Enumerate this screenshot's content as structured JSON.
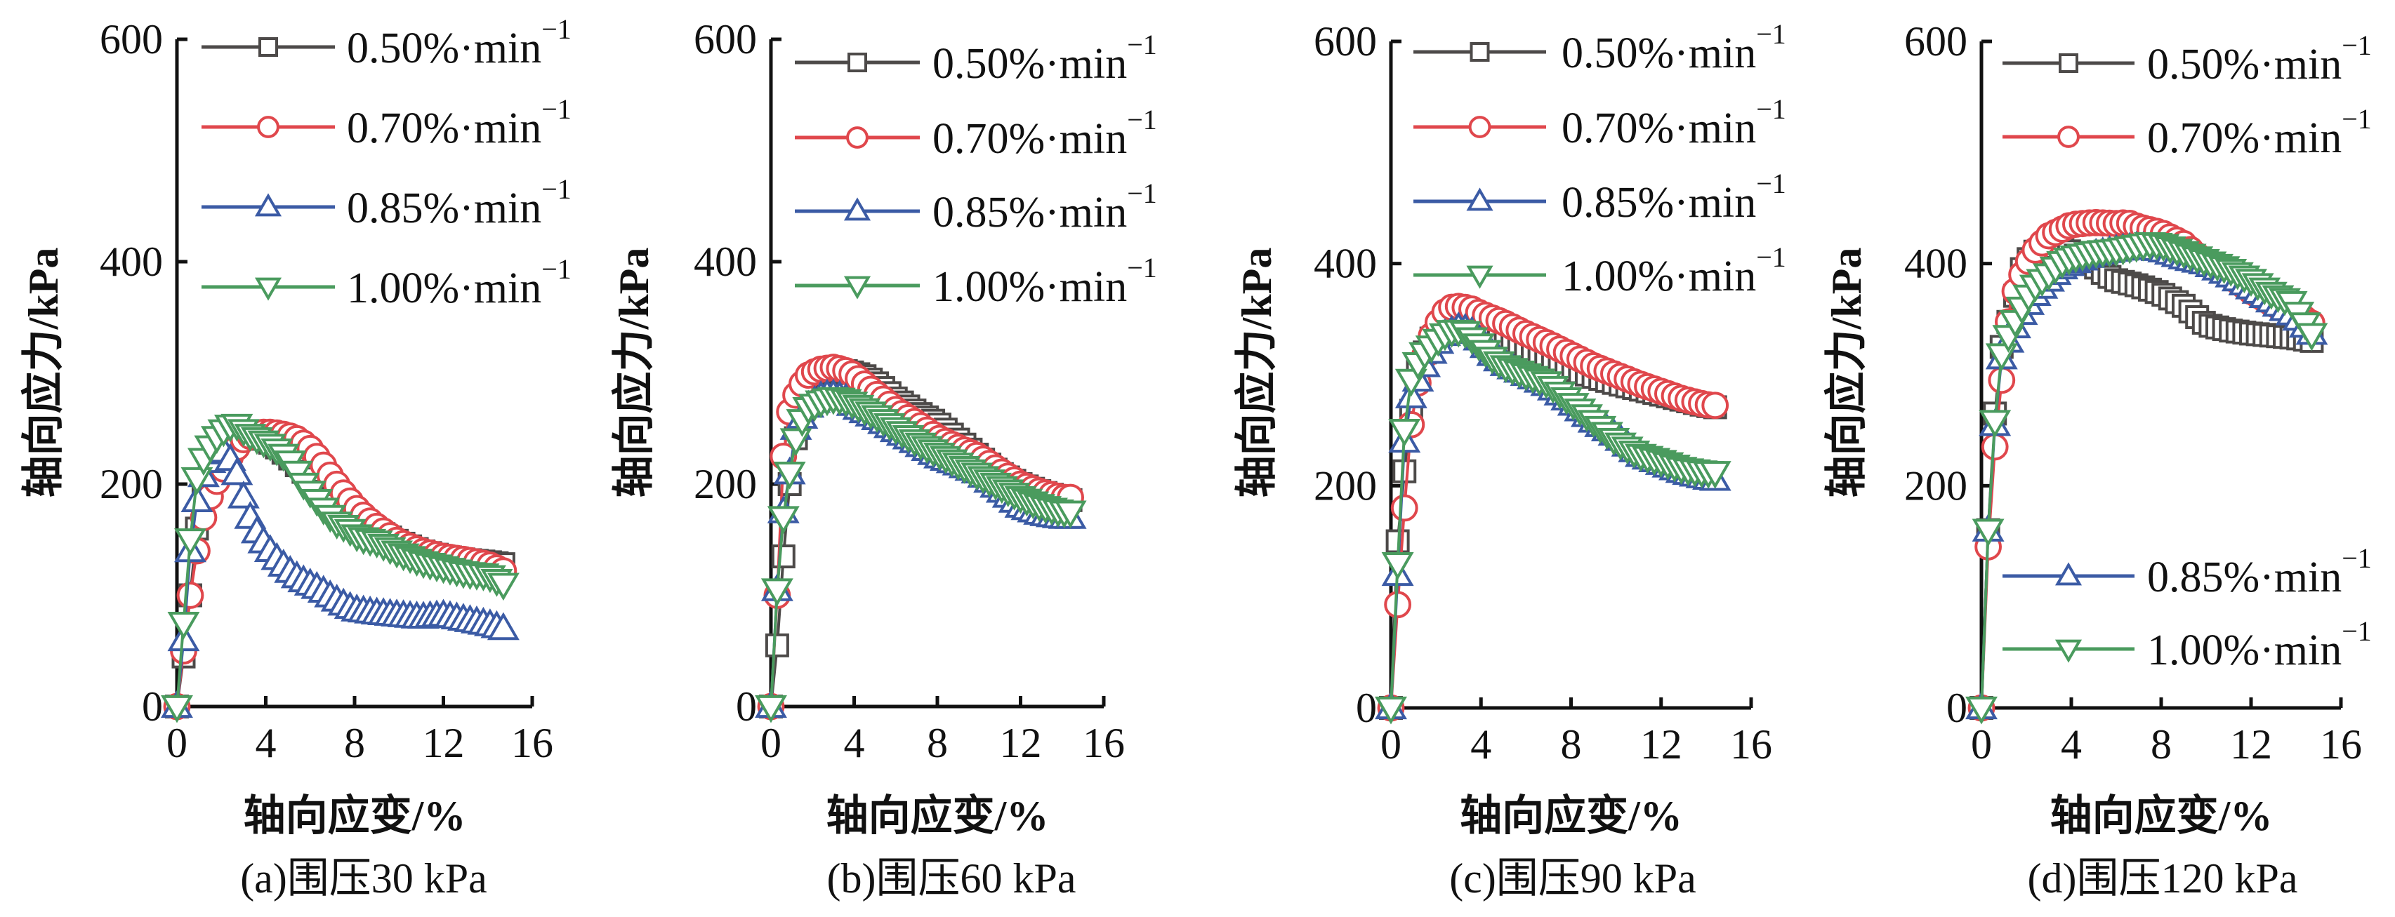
{
  "figure": {
    "series_styles": [
      {
        "name": "0.50%·min⁻¹",
        "rate_label": "0.50%·min",
        "sup": "−1",
        "color": "#4d4a49",
        "marker": "square"
      },
      {
        "name": "0.70%·min⁻¹",
        "rate_label": "0.70%·min",
        "sup": "−1",
        "color": "#e0474c",
        "marker": "circle"
      },
      {
        "name": "0.85%·min⁻¹",
        "rate_label": "0.85%·min",
        "sup": "−1",
        "color": "#3b5ba5",
        "marker": "triangle-up"
      },
      {
        "name": "1.00%·min⁻¹",
        "rate_label": "1.00%·min",
        "sup": "−1",
        "color": "#4a9b5e",
        "marker": "triangle-down"
      }
    ]
  },
  "chart_data": [
    {
      "type": "line",
      "title": "(a)围压30 kPa",
      "xlabel": "轴向应变/%",
      "ylabel": "轴向应力/kPa",
      "xlim": [
        0,
        16
      ],
      "ylim": [
        0,
        600
      ],
      "xticks": [
        0,
        4,
        8,
        12,
        16
      ],
      "yticks": [
        0,
        200,
        400,
        600
      ],
      "grid": false,
      "legend_position": "top-right",
      "series": [
        {
          "name": "0.50%·min⁻¹",
          "x": [
            0,
            0.3,
            0.6,
            0.9,
            1.2,
            1.6,
            2,
            2.5,
            3,
            3.5,
            4,
            4.5,
            5,
            5.5,
            6,
            6.5,
            7,
            7.5,
            8,
            9,
            10,
            11,
            12,
            13,
            14,
            14.7
          ],
          "y": [
            0,
            45,
            100,
            160,
            195,
            215,
            228,
            238,
            243,
            244,
            240,
            233,
            225,
            215,
            205,
            195,
            185,
            175,
            168,
            158,
            148,
            140,
            135,
            132,
            130,
            128
          ]
        },
        {
          "name": "0.70%·min⁻¹",
          "x": [
            0,
            0.3,
            0.6,
            0.9,
            1.2,
            1.6,
            2,
            2.5,
            3,
            3.5,
            4,
            4.5,
            5,
            5.5,
            6,
            6.5,
            7,
            7.5,
            8,
            8.5,
            9,
            9.5,
            10,
            11,
            12,
            13,
            14,
            14.7
          ],
          "y": [
            0,
            50,
            100,
            140,
            170,
            195,
            210,
            228,
            240,
            245,
            247,
            246,
            244,
            240,
            232,
            220,
            205,
            192,
            180,
            170,
            162,
            155,
            148,
            140,
            135,
            132,
            128,
            122
          ]
        },
        {
          "name": "0.85%·min⁻¹",
          "x": [
            0,
            0.3,
            0.6,
            0.9,
            1.3,
            1.8,
            2.2,
            2.5,
            2.8,
            3.1,
            3.5,
            4,
            4.5,
            5,
            5.5,
            6,
            6.5,
            7,
            7.5,
            8,
            9,
            10,
            11,
            12,
            13,
            14,
            14.7
          ],
          "y": [
            0,
            60,
            140,
            185,
            215,
            228,
            230,
            218,
            205,
            180,
            160,
            145,
            133,
            123,
            115,
            110,
            105,
            98,
            92,
            87,
            84,
            82,
            80,
            82,
            78,
            74,
            70
          ]
        },
        {
          "name": "1.00%·min⁻¹",
          "x": [
            0,
            0.3,
            0.6,
            0.9,
            1.3,
            1.8,
            2.3,
            2.7,
            3.2,
            3.7,
            4.2,
            4.7,
            5.2,
            5.7,
            6.2,
            6.7,
            7.2,
            7.7,
            8.2,
            9,
            10,
            11,
            12,
            13,
            14,
            14.7
          ],
          "y": [
            0,
            75,
            150,
            205,
            228,
            242,
            252,
            253,
            245,
            240,
            235,
            228,
            218,
            200,
            188,
            175,
            165,
            160,
            152,
            148,
            138,
            130,
            125,
            120,
            118,
            110
          ]
        }
      ]
    },
    {
      "type": "line",
      "title": "(b)围压60 kPa",
      "xlabel": "轴向应变/%",
      "ylabel": "轴向应力/kPa",
      "xlim": [
        0,
        16
      ],
      "ylim": [
        0,
        600
      ],
      "xticks": [
        0,
        4,
        8,
        12,
        16
      ],
      "yticks": [
        0,
        200,
        400,
        600
      ],
      "grid": false,
      "legend_position": "top-right",
      "series": [
        {
          "name": "0.50%·min⁻¹",
          "x": [
            0,
            0.3,
            0.6,
            0.9,
            1.3,
            1.8,
            2.3,
            3,
            3.5,
            4,
            4.5,
            5,
            5.5,
            6,
            7,
            8,
            9,
            10,
            11,
            12,
            13,
            14,
            14.5
          ],
          "y": [
            0,
            55,
            135,
            200,
            255,
            280,
            293,
            300,
            302,
            300,
            297,
            292,
            285,
            277,
            265,
            255,
            240,
            225,
            210,
            200,
            193,
            188,
            185
          ]
        },
        {
          "name": "0.70%·min⁻¹",
          "x": [
            0,
            0.3,
            0.6,
            0.9,
            1.3,
            1.8,
            2.3,
            3,
            3.5,
            4,
            4.5,
            5,
            5.5,
            6,
            7,
            8,
            9,
            10,
            11,
            12,
            13,
            14,
            14.5
          ],
          "y": [
            0,
            100,
            225,
            265,
            285,
            298,
            303,
            305,
            303,
            298,
            290,
            282,
            275,
            267,
            255,
            242,
            233,
            225,
            212,
            200,
            193,
            188,
            188
          ]
        },
        {
          "name": "0.85%·min⁻¹",
          "x": [
            0,
            0.3,
            0.6,
            0.9,
            1.2,
            1.8,
            2.5,
            3,
            3.5,
            4,
            5,
            6,
            7,
            8,
            9,
            10,
            11,
            12,
            13,
            14,
            14.5
          ],
          "y": [
            0,
            105,
            175,
            210,
            250,
            270,
            280,
            280,
            278,
            270,
            260,
            248,
            237,
            225,
            218,
            210,
            195,
            180,
            173,
            170,
            170
          ]
        },
        {
          "name": "1.00%·min⁻¹",
          "x": [
            0,
            0.3,
            0.6,
            0.9,
            1.3,
            1.8,
            2.5,
            3,
            3.5,
            4,
            5,
            6,
            7,
            8,
            9,
            10,
            11,
            12,
            13,
            14,
            14.5
          ],
          "y": [
            0,
            105,
            170,
            210,
            250,
            268,
            275,
            277,
            276,
            272,
            262,
            250,
            238,
            228,
            218,
            208,
            198,
            188,
            180,
            175,
            175
          ]
        }
      ]
    },
    {
      "type": "line",
      "title": "(c)围压90 kPa",
      "xlabel": "轴向应变/%",
      "ylabel": "轴向应力/kPa",
      "xlim": [
        0,
        16
      ],
      "ylim": [
        0,
        600
      ],
      "xticks": [
        0,
        4,
        8,
        12,
        16
      ],
      "yticks": [
        0,
        200,
        400,
        600
      ],
      "grid": false,
      "legend_position": "top-right",
      "series": [
        {
          "name": "0.50%·min⁻¹",
          "x": [
            0,
            0.3,
            0.8,
            1.2,
            1.7,
            2.3,
            3,
            3.5,
            4,
            5,
            6,
            7,
            8,
            9,
            10,
            11,
            12,
            13,
            14,
            14.6
          ],
          "y": [
            0,
            150,
            255,
            305,
            330,
            345,
            350,
            348,
            342,
            333,
            322,
            313,
            305,
            298,
            292,
            287,
            282,
            277,
            272,
            270
          ]
        },
        {
          "name": "0.70%·min⁻¹",
          "x": [
            0,
            0.3,
            0.6,
            0.9,
            1.3,
            1.8,
            2.3,
            2.8,
            3.5,
            4,
            5,
            6,
            7,
            8,
            9,
            10,
            11,
            12,
            13,
            14,
            14.6
          ],
          "y": [
            0,
            93,
            180,
            255,
            305,
            335,
            355,
            362,
            360,
            355,
            347,
            337,
            328,
            318,
            308,
            300,
            292,
            285,
            278,
            273,
            272
          ]
        },
        {
          "name": "0.85%·min⁻¹",
          "x": [
            0,
            0.3,
            0.6,
            0.9,
            1.3,
            1.8,
            2.3,
            3,
            3.5,
            4,
            4.5,
            5,
            6,
            7,
            8,
            9,
            10,
            11,
            12,
            13,
            14,
            14.6
          ],
          "y": [
            0,
            120,
            240,
            280,
            300,
            320,
            335,
            342,
            340,
            330,
            318,
            310,
            300,
            290,
            275,
            258,
            245,
            228,
            220,
            212,
            207,
            205
          ]
        },
        {
          "name": "1.00%·min⁻¹",
          "x": [
            0,
            0.3,
            0.6,
            0.9,
            1.3,
            1.8,
            2.3,
            2.8,
            3.3,
            4,
            4.5,
            5,
            6,
            7,
            8,
            9,
            10,
            11,
            12,
            13,
            14,
            14.6
          ],
          "y": [
            0,
            130,
            250,
            295,
            315,
            325,
            335,
            340,
            338,
            325,
            315,
            308,
            300,
            292,
            275,
            258,
            240,
            228,
            222,
            215,
            212,
            212
          ]
        }
      ]
    },
    {
      "type": "line",
      "title": "(d)围压120 kPa",
      "xlabel": "轴向应变/%",
      "ylabel": "轴向应力/kPa",
      "xlim": [
        0,
        16
      ],
      "ylim": [
        0,
        600
      ],
      "xticks": [
        0,
        4,
        8,
        12,
        16
      ],
      "yticks": [
        0,
        200,
        400,
        600
      ],
      "grid": false,
      "legend_position": "split: top-right (0.50, 0.70) and bottom-right (0.85, 1.00)",
      "series": [
        {
          "name": "0.50%·min⁻¹",
          "x": [
            0,
            0.3,
            0.6,
            0.9,
            1.3,
            1.8,
            2.3,
            3,
            3.5,
            4,
            4.5,
            5,
            5.5,
            6,
            7,
            8,
            9,
            10,
            11,
            12,
            13,
            14,
            14.8
          ],
          "y": [
            0,
            160,
            265,
            325,
            355,
            395,
            410,
            415,
            415,
            410,
            403,
            398,
            390,
            385,
            380,
            373,
            362,
            345,
            340,
            337,
            335,
            333,
            330
          ]
        },
        {
          "name": "0.70%·min⁻¹",
          "x": [
            0,
            0.3,
            0.6,
            0.9,
            1.3,
            1.8,
            2.3,
            3,
            3.5,
            4,
            5,
            6,
            6.5,
            7,
            8,
            9,
            10,
            11,
            12,
            13,
            14,
            14.8
          ],
          "y": [
            0,
            145,
            235,
            295,
            365,
            390,
            410,
            425,
            430,
            435,
            437,
            436,
            437,
            433,
            428,
            418,
            400,
            390,
            375,
            363,
            355,
            345
          ]
        },
        {
          "name": "0.85%·min⁻¹",
          "x": [
            0,
            0.3,
            0.6,
            0.9,
            1.3,
            1.8,
            2.3,
            3,
            3.5,
            4,
            5,
            6,
            7,
            8,
            9,
            10,
            11,
            12,
            13,
            14,
            14.8
          ],
          "y": [
            0,
            160,
            255,
            315,
            335,
            355,
            370,
            385,
            395,
            400,
            408,
            412,
            415,
            412,
            405,
            400,
            390,
            378,
            365,
            352,
            335
          ]
        },
        {
          "name": "1.00%·min⁻¹",
          "x": [
            0,
            0.3,
            0.6,
            0.9,
            1.3,
            1.8,
            2.3,
            3,
            3.5,
            4,
            5,
            6,
            7,
            7.5,
            8,
            9,
            10,
            11,
            12,
            13,
            13.8,
            14.8
          ],
          "y": [
            0,
            160,
            258,
            318,
            340,
            360,
            378,
            390,
            400,
            405,
            410,
            412,
            416,
            418,
            417,
            410,
            402,
            395,
            385,
            372,
            365,
            333
          ]
        }
      ]
    }
  ]
}
